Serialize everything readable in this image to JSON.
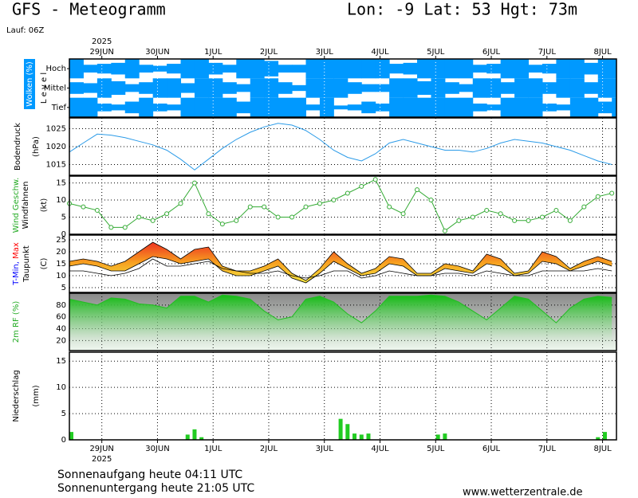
{
  "header": {
    "title": "GFS - Meteogramm",
    "location": "Lon: -9 Lat: 53 Hgt: 73m",
    "run": "Lauf: 06Z"
  },
  "footer": {
    "sunrise": "Sonnenaufgang heute 04:11 UTC",
    "sunset": "Sonnenuntergang heute 21:05 UTC",
    "source": "www.wetterzentrale.de"
  },
  "time": {
    "xlim": [
      0,
      236
    ],
    "year": "2025",
    "x": [
      0,
      6,
      12,
      18,
      24,
      30,
      36,
      42,
      48,
      54,
      60,
      66,
      72,
      78,
      84,
      90,
      96,
      102,
      108,
      114,
      120,
      126,
      132,
      138,
      144,
      150,
      156,
      162,
      168,
      174,
      180,
      186,
      192,
      198,
      204,
      210,
      216,
      222,
      228,
      234
    ],
    "xticks": [
      {
        "value": 14,
        "label": "29JUN"
      },
      {
        "value": 38,
        "label": "30JUN"
      },
      {
        "value": 62,
        "label": "1JUL"
      },
      {
        "value": 86,
        "label": "2JUL"
      },
      {
        "value": 110,
        "label": "3JUL"
      },
      {
        "value": 134,
        "label": "4JUL"
      },
      {
        "value": 158,
        "label": "5JUL"
      },
      {
        "value": 182,
        "label": "6JUL"
      },
      {
        "value": 206,
        "label": "7JUL"
      },
      {
        "value": 230,
        "label": "8JUL"
      }
    ]
  },
  "chart_data": [
    {
      "type": "cloud",
      "ylabel": [
        [
          {
            "text": "Wolken (%)",
            "color": "#ffffff"
          }
        ],
        [
          {
            "text": "L e v e l"
          }
        ]
      ],
      "color": "#0099ff",
      "series": [
        {
          "name": "Hoch",
          "values": [
            100,
            40,
            50,
            60,
            100,
            40,
            30,
            50,
            100,
            100,
            60,
            40,
            100,
            100,
            80,
            40,
            40,
            100,
            100,
            100,
            100,
            100,
            100,
            50,
            60,
            100,
            100,
            100,
            100,
            40,
            50,
            100,
            100,
            40,
            50,
            100,
            100,
            60,
            100,
            100
          ]
        },
        {
          "name": "Mittel",
          "values": [
            60,
            50,
            100,
            70,
            40,
            60,
            100,
            100,
            50,
            100,
            100,
            60,
            40,
            100,
            100,
            60,
            30,
            100,
            100,
            100,
            60,
            40,
            40,
            100,
            100,
            70,
            100,
            60,
            40,
            100,
            100,
            60,
            100,
            100,
            60,
            100,
            100,
            60,
            100,
            100
          ]
        },
        {
          "name": "Tief",
          "values": [
            100,
            100,
            40,
            30,
            60,
            100,
            40,
            30,
            100,
            100,
            100,
            100,
            60,
            100,
            100,
            100,
            100,
            30,
            100,
            20,
            30,
            60,
            40,
            100,
            100,
            100,
            100,
            100,
            100,
            40,
            30,
            100,
            100,
            100,
            40,
            30,
            100,
            100,
            60,
            100
          ]
        }
      ]
    },
    {
      "type": "line",
      "ylabel": [
        [
          {
            "text": "Bodendruck"
          }
        ],
        [
          {
            "text": "(hPa)"
          }
        ]
      ],
      "ylim": [
        1012,
        1028
      ],
      "yticks": [
        1015,
        1020,
        1025
      ],
      "series": [
        {
          "color": "#2b9be8",
          "values": [
            1018.5,
            1021,
            1023.5,
            1023.2,
            1022.5,
            1021.5,
            1020.5,
            1019,
            1016.5,
            1013.5,
            1016.5,
            1019.5,
            1022,
            1024,
            1025.5,
            1026.5,
            1026,
            1024.5,
            1022,
            1019,
            1017,
            1016,
            1018,
            1021,
            1022,
            1021,
            1020,
            1019,
            1019,
            1018.5,
            1019.5,
            1021,
            1022,
            1021.5,
            1021,
            1020,
            1019,
            1017.5,
            1016,
            1015
          ]
        }
      ]
    },
    {
      "type": "line",
      "markers": true,
      "ylabel": [
        [
          {
            "text": "Wind Geschw.",
            "color": "#22aa22"
          }
        ],
        [
          {
            "text": "Windfahnen"
          }
        ],
        [
          {
            "text": "(kt)"
          }
        ]
      ],
      "ylim": [
        0,
        17
      ],
      "yticks": [
        0,
        5,
        10,
        15
      ],
      "series": [
        {
          "color": "#33aa33",
          "values": [
            9,
            8,
            7,
            2,
            2,
            5,
            4,
            6,
            9,
            15,
            6,
            3,
            4,
            8,
            8,
            5,
            5,
            8,
            9,
            10,
            12,
            14,
            16,
            8,
            6,
            13,
            10,
            1,
            4,
            5,
            7,
            6,
            4,
            4,
            5,
            7,
            4,
            8,
            11,
            12
          ]
        }
      ]
    },
    {
      "type": "band",
      "ylabel": [
        [
          {
            "text": "T-Min, ",
            "color": "#0000ff"
          },
          {
            "text": "Max",
            "color": "#ff0000"
          }
        ],
        [
          {
            "text": "Taupunkt"
          }
        ],
        [
          {
            "text": "(C)"
          }
        ]
      ],
      "ylim": [
        3,
        27
      ],
      "yticks": [
        5,
        10,
        15,
        20,
        25
      ],
      "series": [
        {
          "color": "#000000",
          "values": [
            16,
            17,
            16,
            14,
            16,
            20,
            24,
            21,
            17,
            21,
            22,
            14,
            12,
            12,
            14,
            17,
            11,
            8,
            13,
            20,
            15,
            11,
            13,
            18,
            17,
            11,
            11,
            15,
            14,
            12,
            19,
            17,
            11,
            12,
            20,
            18,
            13,
            16,
            18,
            16
          ]
        },
        {
          "color": "#000000",
          "values": [
            14,
            15,
            14,
            12,
            12,
            15,
            18,
            17,
            15,
            16,
            17,
            12,
            10,
            10,
            12,
            14,
            9,
            7,
            11,
            16,
            13,
            10,
            11,
            15,
            14,
            10,
            10,
            13,
            12,
            11,
            15,
            14,
            10,
            11,
            16,
            15,
            12,
            14,
            16,
            14
          ]
        },
        {
          "color": "#000000",
          "values": [
            12,
            12,
            11,
            10,
            11,
            13,
            17,
            14,
            14,
            15,
            16,
            13,
            12,
            11,
            11,
            12,
            10,
            9,
            10,
            12,
            12,
            9,
            10,
            12,
            11,
            10,
            10,
            11,
            11,
            10,
            12,
            11,
            10,
            10,
            12,
            12,
            12,
            12,
            13,
            12
          ]
        }
      ]
    },
    {
      "type": "area",
      "ylabel": [
        [
          {
            "text": "2m RF (%)",
            "color": "#22aa22"
          }
        ]
      ],
      "ylim": [
        3,
        100
      ],
      "yticks": [
        20,
        40,
        60,
        80
      ],
      "series": [
        {
          "color": "#22bb22",
          "values": [
            90,
            85,
            80,
            92,
            90,
            82,
            80,
            75,
            95,
            95,
            85,
            97,
            95,
            90,
            70,
            55,
            60,
            90,
            95,
            85,
            65,
            50,
            70,
            95,
            95,
            95,
            97,
            95,
            85,
            70,
            55,
            75,
            95,
            90,
            70,
            50,
            75,
            90,
            95,
            93
          ]
        }
      ]
    },
    {
      "type": "bar",
      "ylabel": [
        [
          {
            "text": "Niederschlag"
          }
        ],
        [
          {
            "text": "(mm)"
          }
        ]
      ],
      "ylim": [
        0,
        16.7
      ],
      "yticks": [
        0,
        5,
        10,
        15
      ],
      "color": "#22cc22",
      "x": [
        0,
        51,
        54,
        57,
        117,
        120,
        123,
        126,
        129,
        159,
        162,
        228,
        231
      ],
      "values": [
        1.5,
        1,
        2,
        0.5,
        4,
        3,
        1.2,
        1,
        1.2,
        1,
        1.2,
        0.5,
        1.5
      ]
    }
  ]
}
